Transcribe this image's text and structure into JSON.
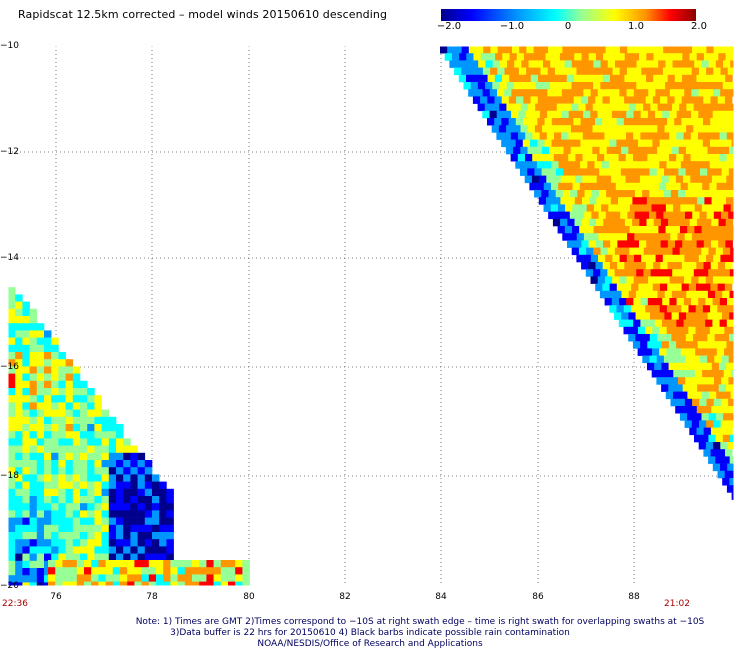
{
  "title": "Rapidscat 12.5km corrected – model winds 20150610 descending",
  "colorbar": {
    "labels": [
      "−2.0",
      "−1.0",
      "0",
      "1.0",
      "2.0"
    ],
    "colors": [
      "#00008c",
      "#0000ff",
      "#0096ff",
      "#00ffff",
      "#96ff96",
      "#ffff00",
      "#ff9600",
      "#ff0000",
      "#8c0000"
    ]
  },
  "axes": {
    "y_labels": [
      "−10",
      "−12",
      "−14",
      "−16",
      "−18",
      "−20"
    ],
    "x_labels": [
      "76",
      "78",
      "80",
      "82",
      "84",
      "86",
      "88"
    ]
  },
  "times": {
    "left": "22:36",
    "right": "21:02"
  },
  "notes": {
    "line1": "Note: 1) Times are GMT 2)Times correspond to −10S at right swath edge – time is right swath for overlapping swaths at −10S",
    "line2": "3)Data buffer is 22 hrs for 20150610 4) Black barbs indicate possible rain contamination",
    "line3": "NOAA/NESDIS/Office of Research and Applications"
  }
}
